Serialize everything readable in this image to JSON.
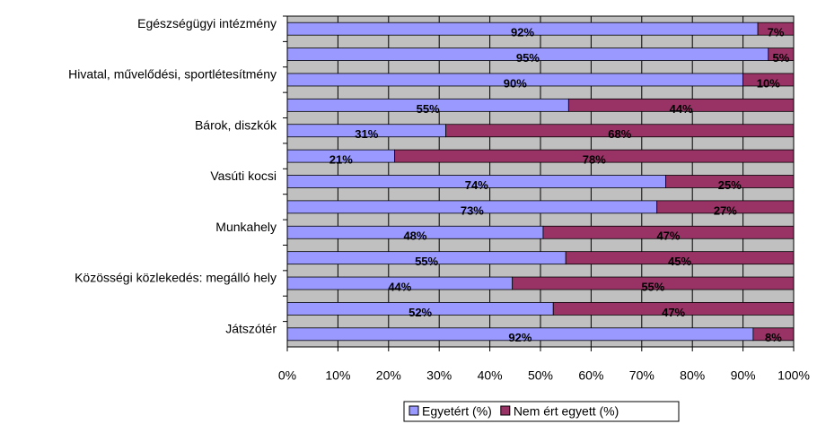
{
  "chart_data": {
    "type": "bar",
    "orientation": "horizontal",
    "stacking": "percent",
    "categories": [
      "Egészségügyi intézmény",
      null,
      "Hivatal, művelődési, sportlétesítmény",
      null,
      "Bárok, diszkók",
      null,
      "Vasúti kocsi",
      null,
      "Munkahely",
      null,
      "Közösségi közlekedés: megálló hely",
      null,
      "Játszótér"
    ],
    "series": [
      {
        "name": "Egyetért (%)",
        "color": "#9999ff",
        "values": [
          92,
          95,
          90,
          55,
          31,
          21,
          74,
          73,
          48,
          55,
          44,
          52,
          92
        ],
        "value_labels": [
          "92%",
          "95%",
          "90%",
          "55%",
          "31%",
          "21%",
          "74%",
          "73%",
          "48%",
          "55%",
          "44%",
          "52%",
          "92%"
        ]
      },
      {
        "name": "Nem ért egyett (%)",
        "color": "#993366",
        "values": [
          7,
          5,
          10,
          44,
          68,
          78,
          25,
          27,
          47,
          45,
          55,
          47,
          8
        ],
        "value_labels": [
          "7%",
          "5%",
          "10%",
          "44%",
          "68%",
          "78%",
          "25%",
          "27%",
          "47%",
          "45%",
          "55%",
          "47%",
          "8%"
        ]
      }
    ],
    "xlim": [
      0,
      100
    ],
    "xticks": [
      {
        "value": 0,
        "label": "0%"
      },
      {
        "value": 10,
        "label": "10%"
      },
      {
        "value": 20,
        "label": "20%"
      },
      {
        "value": 30,
        "label": "30%"
      },
      {
        "value": 40,
        "label": "40%"
      },
      {
        "value": 50,
        "label": "50%"
      },
      {
        "value": 60,
        "label": "60%"
      },
      {
        "value": 70,
        "label": "70%"
      },
      {
        "value": 80,
        "label": "80%"
      },
      {
        "value": 90,
        "label": "90%"
      },
      {
        "value": 100,
        "label": "100%"
      }
    ],
    "grid": true,
    "legend": "bottom",
    "plot_background": "#c0c0c0"
  }
}
